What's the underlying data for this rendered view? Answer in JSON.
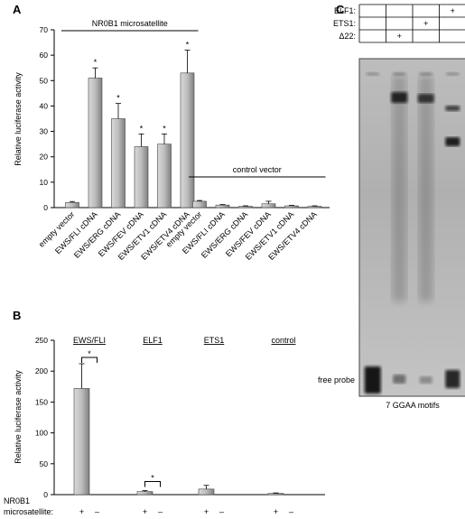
{
  "panels": {
    "a": "A",
    "b": "B",
    "c": "C"
  },
  "chart_data": [
    {
      "type": "bar",
      "panel": "A",
      "ylabel": "Relative luciferase activity",
      "ylim": [
        0,
        70
      ],
      "yticks": [
        0,
        10,
        20,
        30,
        40,
        50,
        60,
        70
      ],
      "categories": [
        "empty vector",
        "EWS/FLI cDNA",
        "EWS/ERG cDNA",
        "EWS/FEV cDNA",
        "EWS/ETV1 cDNA",
        "EWS/ETV4 cDNA"
      ],
      "groups": [
        {
          "label": "NR0B1 microsatellite",
          "values": [
            2,
            51,
            35,
            24,
            25,
            53
          ],
          "errors": [
            0.4,
            4,
            6,
            5,
            4,
            9
          ],
          "stars": [
            "",
            "*",
            "*",
            "*",
            "*",
            "*"
          ]
        },
        {
          "label": "control vector",
          "values": [
            2.5,
            1,
            0.5,
            1.5,
            0.7,
            0.5
          ],
          "errors": [
            0.3,
            0.2,
            0.2,
            1,
            0.2,
            0.2
          ],
          "stars": [
            "",
            "",
            "",
            "",
            "",
            ""
          ]
        }
      ]
    },
    {
      "type": "bar",
      "panel": "B",
      "ylabel": "Relative luciferase activity",
      "ylim": [
        0,
        250
      ],
      "yticks": [
        0,
        50,
        100,
        150,
        200,
        250
      ],
      "groups": [
        {
          "label": "EWS/FLI",
          "values": [
            172,
            0
          ],
          "errors": [
            40,
            0
          ],
          "bracket": "*"
        },
        {
          "label": "ELF1",
          "values": [
            5,
            0
          ],
          "errors": [
            1.5,
            0
          ],
          "bracket": "*"
        },
        {
          "label": "ETS1",
          "values": [
            9,
            0
          ],
          "errors": [
            6,
            0
          ],
          "bracket": ""
        },
        {
          "label": "control",
          "values": [
            2,
            0
          ],
          "errors": [
            0.8,
            0
          ],
          "bracket": ""
        }
      ],
      "row_label_line1": "NR0B1",
      "row_label_line2": "microsatellite:",
      "row_signs": [
        "+",
        "–"
      ]
    }
  ],
  "gel": {
    "rows": [
      {
        "label": "ELF1:",
        "signs": [
          "",
          "",
          "",
          "+"
        ]
      },
      {
        "label": "ETS1:",
        "signs": [
          "",
          "",
          "+",
          ""
        ]
      },
      {
        "label": "Δ22:",
        "signs": [
          "",
          "+",
          "",
          ""
        ]
      }
    ],
    "free_probe_label": "free probe",
    "caption": "7 GGAA motifs"
  }
}
